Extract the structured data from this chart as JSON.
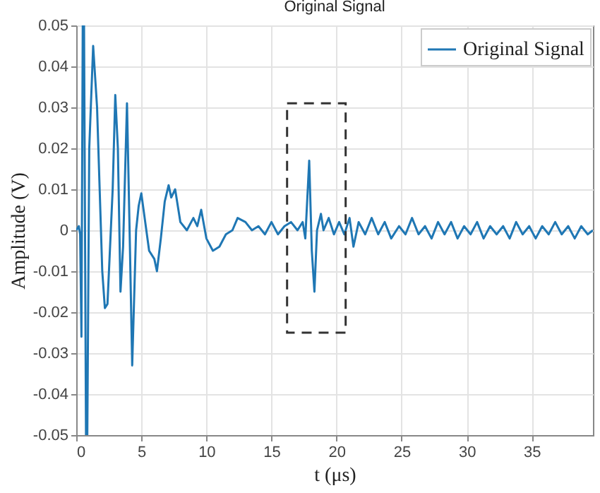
{
  "chart_data": {
    "type": "line",
    "title": "Original Signal",
    "xlabel": "t (μs)",
    "ylabel": "Amplitude (V)",
    "xlim": [
      0,
      39.7
    ],
    "xticks": [
      0,
      5,
      10,
      15,
      20,
      25,
      30,
      35
    ],
    "ylim": [
      -0.05,
      0.05
    ],
    "yticks": [
      -0.05,
      -0.04,
      -0.03,
      -0.02,
      -0.01,
      0,
      0.01,
      0.02,
      0.03,
      0.04,
      0.05
    ],
    "grid": true,
    "legend": "top right",
    "series": [
      {
        "name": "Original Signal",
        "color": "#1f77b4",
        "x": [
          0,
          0.2,
          0.3,
          0.4,
          0.5,
          0.6,
          0.75,
          0.85,
          1.0,
          1.3,
          1.6,
          2.0,
          2.2,
          2.4,
          2.8,
          3.0,
          3.2,
          3.4,
          3.6,
          3.9,
          4.1,
          4.3,
          4.6,
          4.8,
          5.0,
          5.3,
          5.6,
          6.0,
          6.2,
          6.5,
          6.8,
          7.1,
          7.3,
          7.6,
          8.0,
          8.5,
          9.0,
          9.3,
          9.6,
          10.0,
          10.5,
          11.0,
          11.5,
          12.0,
          12.4,
          13.0,
          13.5,
          14,
          14.5,
          15,
          15.5,
          16,
          16.5,
          17,
          17.4,
          17.6,
          17.9,
          18.1,
          18.3,
          18.5,
          18.8,
          19.0,
          19.4,
          19.8,
          20.2,
          20.6,
          21.0,
          21.3,
          21.7,
          22.2,
          22.7,
          23.2,
          23.7,
          24.2,
          24.8,
          25.3,
          25.8,
          26.3,
          26.8,
          27.3,
          27.8,
          28.3,
          28.8,
          29.3,
          29.8,
          30.3,
          30.8,
          31.3,
          31.8,
          32.3,
          32.8,
          33.3,
          33.8,
          34.3,
          34.8,
          35.3,
          35.8,
          36.3,
          36.8,
          37.3,
          37.8,
          38.3,
          38.8,
          39.3,
          39.7
        ],
        "values": [
          0,
          0.001,
          -0.001,
          -0.026,
          0.05,
          0.05,
          -0.05,
          -0.05,
          0.02,
          0.045,
          0.03,
          -0.01,
          -0.019,
          -0.018,
          0.01,
          0.033,
          0.02,
          -0.015,
          -0.004,
          0.031,
          0,
          -0.033,
          0,
          0.006,
          0.009,
          0.002,
          -0.005,
          -0.007,
          -0.01,
          -0.002,
          0.007,
          0.011,
          0.008,
          0.01,
          0.002,
          0,
          0.003,
          0.001,
          0.005,
          -0.002,
          -0.005,
          -0.004,
          -0.001,
          0,
          0.003,
          0.002,
          0,
          0.001,
          -0.001,
          0.002,
          -0.001,
          0.001,
          0.002,
          0,
          0.002,
          -0.002,
          0.017,
          -0.005,
          -0.015,
          0,
          0.004,
          0,
          0.003,
          -0.001,
          0.002,
          -0.001,
          0.003,
          -0.004,
          0.002,
          -0.001,
          0.003,
          -0.001,
          0.002,
          -0.002,
          0.001,
          -0.001,
          0.003,
          -0.001,
          0.001,
          -0.002,
          0.002,
          -0.001,
          0.002,
          -0.002,
          0.001,
          -0.001,
          0.002,
          -0.002,
          0.001,
          -0.001,
          0.001,
          -0.002,
          0.002,
          -0.001,
          0.001,
          -0.002,
          0.001,
          -0.001,
          0.002,
          -0.001,
          0.001,
          -0.002,
          0.001,
          -0.001,
          0
        ]
      }
    ]
  }
}
